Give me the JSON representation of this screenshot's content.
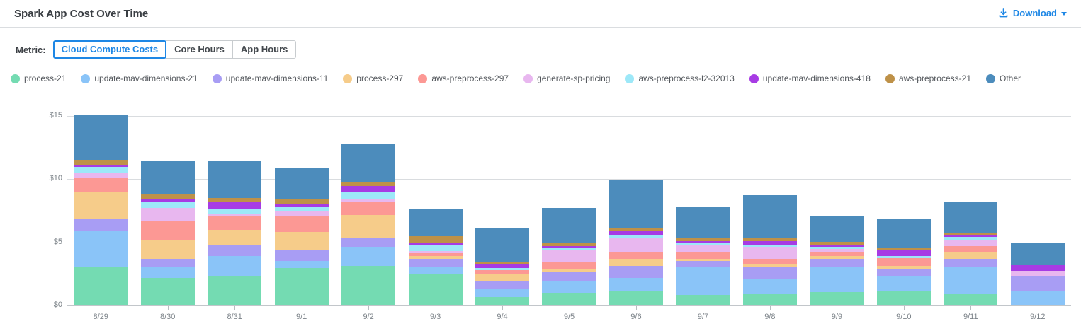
{
  "header": {
    "title": "Spark App Cost Over Time",
    "download_label": "Download"
  },
  "metric": {
    "label": "Metric:",
    "options": [
      {
        "label": "Cloud Compute Costs",
        "selected": true
      },
      {
        "label": "Core Hours",
        "selected": false
      },
      {
        "label": "App Hours",
        "selected": false
      }
    ]
  },
  "accent_color": "#1e87e5",
  "chart_data": {
    "type": "bar",
    "stacked": true,
    "title": "Spark App Cost Over Time",
    "xlabel": "",
    "ylabel": "",
    "ylim": [
      0,
      15
    ],
    "ytick_labels": [
      "$0",
      "$5",
      "$10",
      "$15"
    ],
    "grid": true,
    "legend_position": "top",
    "categories": [
      "8/29",
      "8/30",
      "8/31",
      "9/1",
      "9/2",
      "9/3",
      "9/4",
      "9/5",
      "9/6",
      "9/7",
      "9/8",
      "9/9",
      "9/10",
      "9/11",
      "9/12"
    ],
    "series": [
      {
        "name": "process-21",
        "color": "#74dbb2",
        "values": [
          3.1,
          2.2,
          2.3,
          2.95,
          3.15,
          2.5,
          0.7,
          1.0,
          1.1,
          0.85,
          0.9,
          1.05,
          1.1,
          0.9,
          0.0
        ]
      },
      {
        "name": "update-mav-dimensions-21",
        "color": "#8ac4f8",
        "values": [
          2.8,
          0.8,
          1.6,
          0.6,
          1.5,
          0.6,
          0.57,
          0.95,
          1.1,
          2.15,
          1.15,
          2.0,
          1.2,
          2.15,
          1.15
        ]
      },
      {
        "name": "update-mav-dimensions-11",
        "color": "#a89df4",
        "values": [
          1.0,
          0.7,
          0.85,
          0.9,
          0.75,
          0.6,
          0.71,
          0.75,
          0.95,
          0.55,
          1.0,
          0.65,
          0.56,
          0.65,
          1.15
        ]
      },
      {
        "name": "process-297",
        "color": "#f6cc8a",
        "values": [
          2.1,
          1.45,
          1.25,
          1.4,
          1.75,
          0.22,
          0.49,
          0.22,
          0.55,
          0.13,
          0.25,
          0.2,
          0.26,
          0.5,
          0.0
        ]
      },
      {
        "name": "aws-preprocess-297",
        "color": "#fc9894",
        "values": [
          1.05,
          1.5,
          1.1,
          1.25,
          1.05,
          0.22,
          0.34,
          0.56,
          0.5,
          0.52,
          0.4,
          0.37,
          0.62,
          0.52,
          0.0
        ]
      },
      {
        "name": "generate-sp-pricing",
        "color": "#e8b7ef",
        "values": [
          0.5,
          1.1,
          0.15,
          0.35,
          0.2,
          0.17,
          0.0,
          0.9,
          1.15,
          0.56,
          0.95,
          0.19,
          0.0,
          0.45,
          0.45
        ]
      },
      {
        "name": "aws-preprocess-l2-32013",
        "color": "#9de8f8",
        "values": [
          0.45,
          0.5,
          0.4,
          0.35,
          0.55,
          0.5,
          0.15,
          0.19,
          0.2,
          0.15,
          0.1,
          0.19,
          0.19,
          0.24,
          0.0
        ]
      },
      {
        "name": "update-mav-dimensions-418",
        "color": "#a73be4",
        "values": [
          0.1,
          0.2,
          0.5,
          0.25,
          0.5,
          0.2,
          0.37,
          0.15,
          0.35,
          0.19,
          0.37,
          0.19,
          0.47,
          0.15,
          0.45
        ]
      },
      {
        "name": "aws-preprocess-21",
        "color": "#be9148",
        "values": [
          0.45,
          0.4,
          0.35,
          0.35,
          0.35,
          0.5,
          0.15,
          0.22,
          0.2,
          0.2,
          0.23,
          0.19,
          0.22,
          0.22,
          0.0
        ]
      },
      {
        "name": "Other",
        "color": "#4c8cbc",
        "values": [
          3.5,
          2.65,
          3.0,
          2.5,
          2.95,
          2.14,
          2.62,
          2.81,
          3.8,
          2.5,
          3.4,
          2.0,
          2.28,
          2.4,
          1.8
        ]
      }
    ]
  }
}
